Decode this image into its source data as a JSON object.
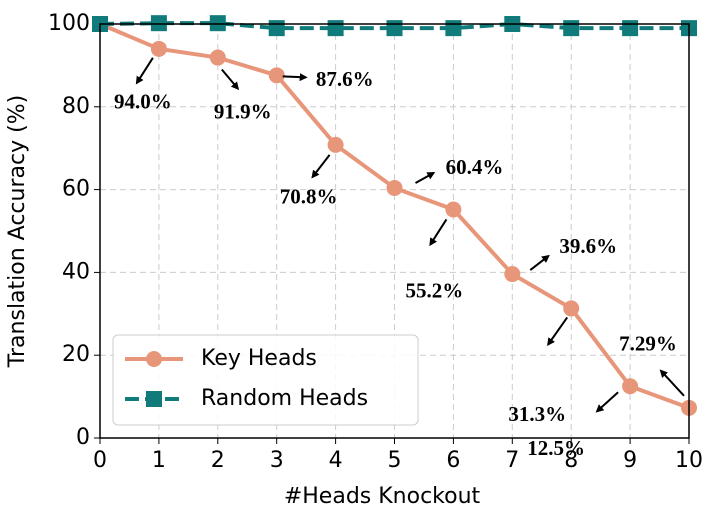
{
  "chart_data": {
    "type": "line",
    "x": [
      0,
      1,
      2,
      3,
      4,
      5,
      6,
      7,
      8,
      9,
      10
    ],
    "xlim": [
      0,
      10
    ],
    "xticks": [
      0,
      1,
      2,
      3,
      4,
      5,
      6,
      7,
      8,
      9,
      10
    ],
    "ylim": [
      0,
      100
    ],
    "yticks": [
      0,
      20,
      40,
      60,
      80,
      100
    ],
    "x_label": "#Heads Knockout",
    "y_label": "Translation Accuracy (%)",
    "grid": true,
    "legend": "lower left",
    "series": [
      {
        "name": "Key Heads",
        "color": "#e8967a",
        "marker": "circle",
        "values": [
          100,
          94.0,
          91.9,
          87.6,
          70.8,
          60.4,
          55.2,
          39.6,
          31.3,
          12.5,
          7.29
        ],
        "value_labels": [
          null,
          "94.0%",
          "91.9%",
          "87.6%",
          "70.8%",
          "60.4%",
          "55.2%",
          "39.6%",
          "31.3%",
          "12.5%",
          "7.29%"
        ]
      },
      {
        "name": "Random Heads",
        "color": "#117a7a",
        "marker": "square",
        "dashed": true,
        "values": [
          100,
          100.2,
          100.2,
          99,
          99,
          99,
          99,
          100,
          99,
          99,
          99
        ]
      }
    ]
  }
}
